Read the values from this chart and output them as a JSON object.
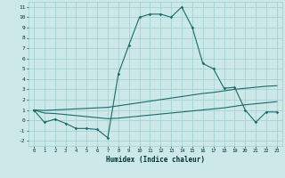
{
  "xlabel": "Humidex (Indice chaleur)",
  "bg_color": "#cce8e8",
  "grid_color": "#9fcfcf",
  "line_color": "#1a6b6b",
  "xlim": [
    -0.5,
    23.5
  ],
  "ylim": [
    -2.5,
    11.5
  ],
  "xticks": [
    0,
    1,
    2,
    3,
    4,
    5,
    6,
    7,
    8,
    9,
    10,
    11,
    12,
    13,
    14,
    15,
    16,
    17,
    18,
    19,
    20,
    21,
    22,
    23
  ],
  "yticks": [
    -2,
    -1,
    0,
    1,
    2,
    3,
    4,
    5,
    6,
    7,
    8,
    9,
    10,
    11
  ],
  "line1_x": [
    0,
    1,
    2,
    3,
    4,
    5,
    6,
    7,
    8,
    9,
    10,
    11,
    12,
    13,
    14,
    15,
    16,
    17,
    18,
    19,
    20,
    21,
    22,
    23
  ],
  "line1_y": [
    1.0,
    -0.2,
    0.1,
    -0.3,
    -0.8,
    -0.8,
    -0.9,
    -1.7,
    4.5,
    7.3,
    10.0,
    10.3,
    10.3,
    10.0,
    11.0,
    9.0,
    5.5,
    5.0,
    3.1,
    3.2,
    1.0,
    -0.2,
    0.8,
    0.8
  ],
  "line2_x": [
    0,
    1,
    2,
    3,
    4,
    5,
    6,
    7,
    8,
    9,
    10,
    11,
    12,
    13,
    14,
    15,
    16,
    17,
    18,
    19,
    20,
    21,
    22,
    23
  ],
  "line2_y": [
    1.0,
    0.95,
    1.0,
    1.05,
    1.1,
    1.15,
    1.2,
    1.25,
    1.4,
    1.55,
    1.7,
    1.85,
    2.0,
    2.15,
    2.3,
    2.45,
    2.6,
    2.7,
    2.85,
    3.0,
    3.1,
    3.2,
    3.3,
    3.35
  ],
  "line3_x": [
    0,
    1,
    2,
    3,
    4,
    5,
    6,
    7,
    8,
    9,
    10,
    11,
    12,
    13,
    14,
    15,
    16,
    17,
    18,
    19,
    20,
    21,
    22,
    23
  ],
  "line3_y": [
    1.0,
    0.7,
    0.65,
    0.55,
    0.45,
    0.35,
    0.25,
    0.15,
    0.2,
    0.3,
    0.4,
    0.5,
    0.6,
    0.7,
    0.8,
    0.9,
    1.0,
    1.1,
    1.2,
    1.35,
    1.5,
    1.6,
    1.7,
    1.8
  ]
}
